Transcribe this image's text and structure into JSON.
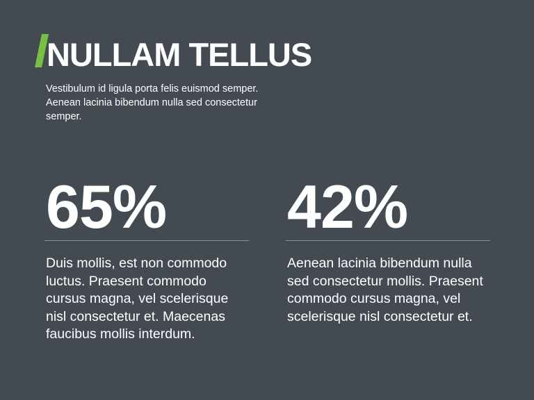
{
  "accent_color": "#76c043",
  "background_color": "#434a51",
  "title": "NULLAM TELLUS",
  "subtitle": "Vestibulum id ligula porta felis euismod semper. Aenean lacinia bibendum nulla sed consectetur semper.",
  "stats": [
    {
      "value": "65%",
      "text": "Duis mollis, est non commodo luctus. Praesent commodo cursus magna, vel scelerisque nisl consectetur et. Maecenas faucibus mollis interdum."
    },
    {
      "value": "42%",
      "text": "Aenean lacinia bibendum nulla sed consectetur mollis. Praesent commodo cursus magna, vel scelerisque nisl consectetur et."
    }
  ]
}
